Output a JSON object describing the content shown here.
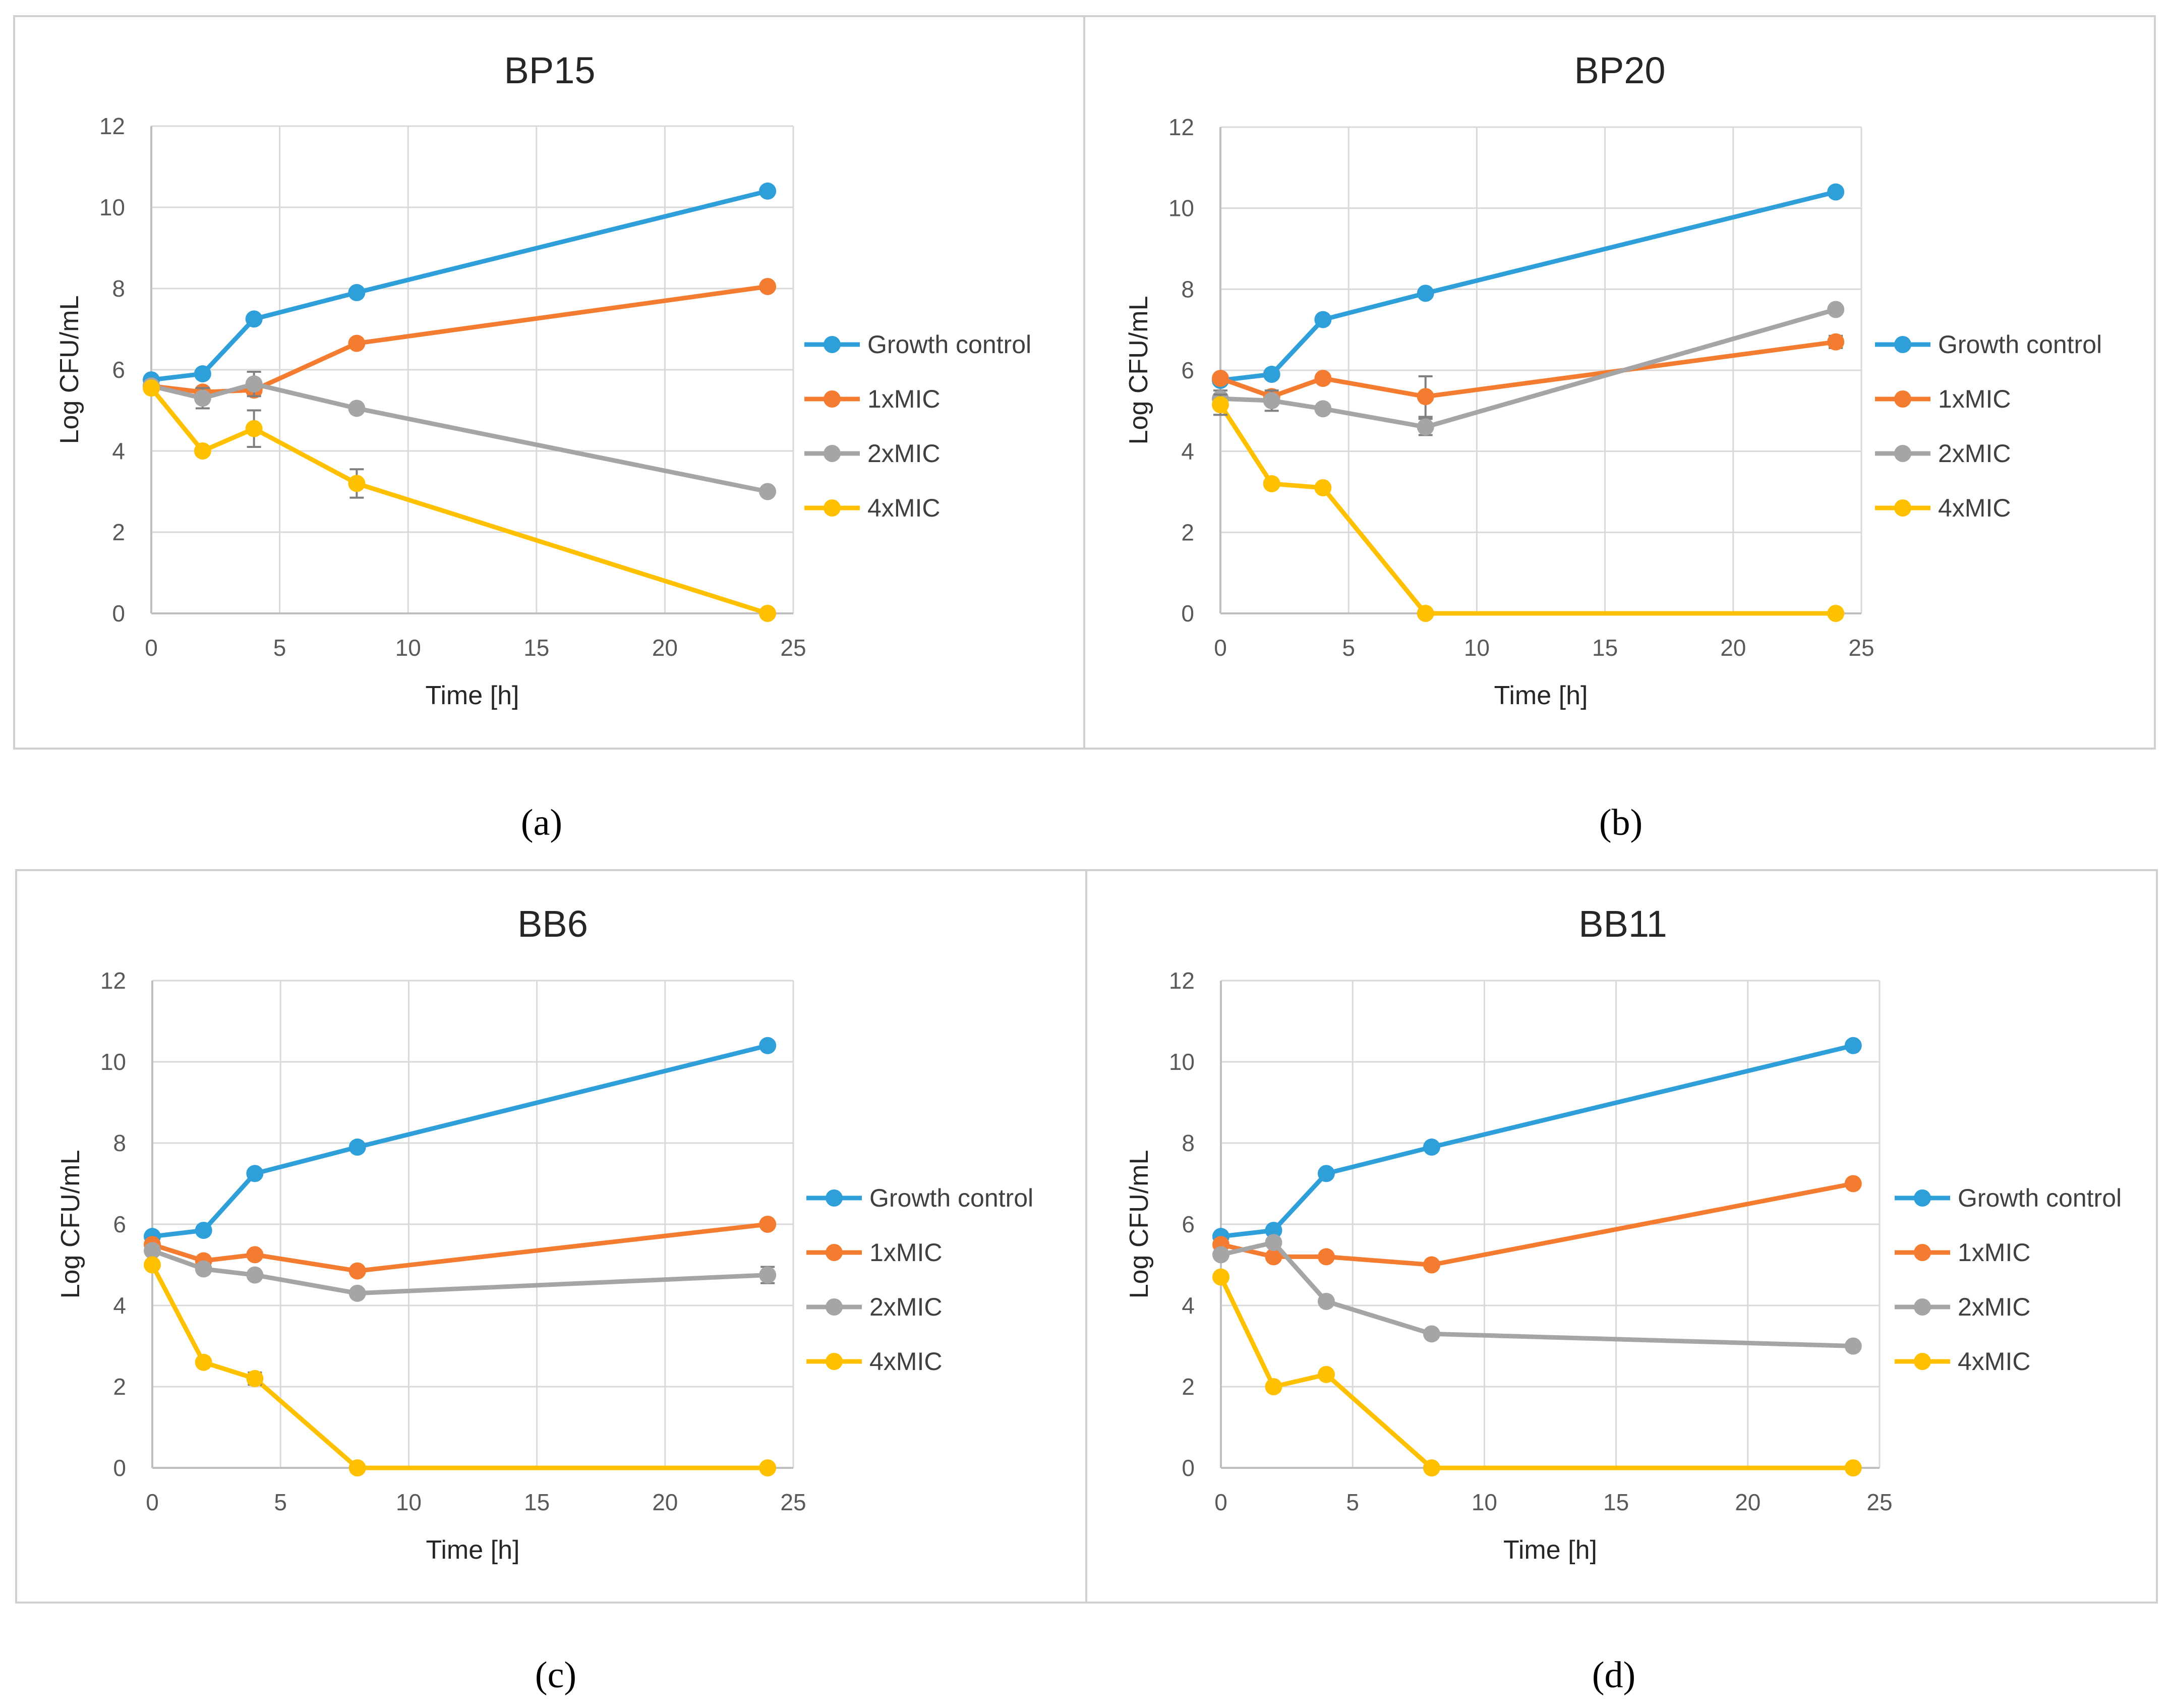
{
  "figure": {
    "panels": [
      {
        "caption": "(a)"
      },
      {
        "caption": "(b)"
      },
      {
        "caption": "(c)"
      },
      {
        "caption": "(d)"
      }
    ]
  },
  "chart_data": [
    {
      "type": "line",
      "title": "BP15",
      "xlabel": "Time [h]",
      "ylabel": "Log CFU/mL",
      "xlim": [
        0,
        25
      ],
      "ylim": [
        0,
        12
      ],
      "xticks": [
        0,
        5,
        10,
        15,
        20,
        25
      ],
      "yticks": [
        0,
        2,
        4,
        6,
        8,
        10,
        12
      ],
      "grid": true,
      "legend": "right",
      "x": [
        0,
        2,
        4,
        8,
        24
      ],
      "series": [
        {
          "name": "Growth control",
          "color": "#2e9fd9",
          "values": [
            5.75,
            5.9,
            7.25,
            7.9,
            10.4
          ],
          "errors": [
            0,
            0,
            0,
            0,
            0
          ]
        },
        {
          "name": "1xMIC",
          "color": "#f47c30",
          "values": [
            5.6,
            5.45,
            5.5,
            6.65,
            8.05
          ],
          "errors": [
            0,
            0,
            0,
            0.1,
            0
          ]
        },
        {
          "name": "2xMIC",
          "color": "#a5a5a5",
          "values": [
            5.6,
            5.3,
            5.65,
            5.05,
            3.0
          ],
          "errors": [
            0,
            0.25,
            0.3,
            0,
            0
          ]
        },
        {
          "name": "4xMIC",
          "color": "#ffc000",
          "values": [
            5.55,
            4.0,
            4.55,
            3.2,
            0.0
          ],
          "errors": [
            0,
            0,
            0.45,
            0.35,
            0
          ]
        }
      ]
    },
    {
      "type": "line",
      "title": "BP20",
      "xlabel": "Time [h]",
      "ylabel": "Log CFU/mL",
      "xlim": [
        0,
        25
      ],
      "ylim": [
        0,
        12
      ],
      "xticks": [
        0,
        5,
        10,
        15,
        20,
        25
      ],
      "yticks": [
        0,
        2,
        4,
        6,
        8,
        10,
        12
      ],
      "grid": true,
      "legend": "right",
      "x": [
        0,
        2,
        4,
        8,
        24
      ],
      "series": [
        {
          "name": "Growth control",
          "color": "#2e9fd9",
          "values": [
            5.75,
            5.9,
            7.25,
            7.9,
            10.4
          ],
          "errors": [
            0,
            0,
            0,
            0,
            0
          ]
        },
        {
          "name": "1xMIC",
          "color": "#f47c30",
          "values": [
            5.8,
            5.35,
            5.8,
            5.35,
            6.7
          ],
          "errors": [
            0,
            0,
            0,
            0.5,
            0.15
          ]
        },
        {
          "name": "2xMIC",
          "color": "#a5a5a5",
          "values": [
            5.3,
            5.25,
            5.05,
            4.6,
            7.5
          ],
          "errors": [
            0.2,
            0.25,
            0,
            0.2,
            0
          ]
        },
        {
          "name": "4xMIC",
          "color": "#ffc000",
          "values": [
            5.15,
            3.2,
            3.1,
            0.0,
            0.0
          ],
          "errors": [
            0.25,
            0,
            0,
            0,
            0
          ]
        }
      ]
    },
    {
      "type": "line",
      "title": "BB6",
      "xlabel": "Time [h]",
      "ylabel": "Log CFU/mL",
      "xlim": [
        0,
        25
      ],
      "ylim": [
        0,
        12
      ],
      "xticks": [
        0,
        5,
        10,
        15,
        20,
        25
      ],
      "yticks": [
        0,
        2,
        4,
        6,
        8,
        10,
        12
      ],
      "grid": true,
      "legend": "right",
      "x": [
        0,
        2,
        4,
        8,
        24
      ],
      "series": [
        {
          "name": "Growth control",
          "color": "#2e9fd9",
          "values": [
            5.7,
            5.85,
            7.25,
            7.9,
            10.4
          ],
          "errors": [
            0,
            0,
            0,
            0,
            0
          ]
        },
        {
          "name": "1xMIC",
          "color": "#f47c30",
          "values": [
            5.5,
            5.1,
            5.25,
            4.85,
            6.0
          ],
          "errors": [
            0,
            0,
            0,
            0,
            0
          ]
        },
        {
          "name": "2xMIC",
          "color": "#a5a5a5",
          "values": [
            5.35,
            4.9,
            4.75,
            4.3,
            4.75
          ],
          "errors": [
            0,
            0.1,
            0,
            0,
            0.2
          ]
        },
        {
          "name": "4xMIC",
          "color": "#ffc000",
          "values": [
            5.0,
            2.6,
            2.2,
            0.0,
            0.0
          ],
          "errors": [
            0,
            0,
            0.15,
            0,
            0
          ]
        }
      ]
    },
    {
      "type": "line",
      "title": "BB11",
      "xlabel": "Time [h]",
      "ylabel": "Log CFU/mL",
      "xlim": [
        0,
        25
      ],
      "ylim": [
        0,
        12
      ],
      "xticks": [
        0,
        5,
        10,
        15,
        20,
        25
      ],
      "yticks": [
        0,
        2,
        4,
        6,
        8,
        10,
        12
      ],
      "grid": true,
      "legend": "right",
      "x": [
        0,
        2,
        4,
        8,
        24
      ],
      "series": [
        {
          "name": "Growth control",
          "color": "#2e9fd9",
          "values": [
            5.7,
            5.85,
            7.25,
            7.9,
            10.4
          ],
          "errors": [
            0,
            0,
            0,
            0,
            0
          ]
        },
        {
          "name": "1xMIC",
          "color": "#f47c30",
          "values": [
            5.5,
            5.2,
            5.2,
            5.0,
            7.0
          ],
          "errors": [
            0,
            0,
            0,
            0,
            0
          ]
        },
        {
          "name": "2xMIC",
          "color": "#a5a5a5",
          "values": [
            5.25,
            5.55,
            4.1,
            3.3,
            3.0
          ],
          "errors": [
            0,
            0,
            0,
            0,
            0
          ]
        },
        {
          "name": "4xMIC",
          "color": "#ffc000",
          "values": [
            4.7,
            2.0,
            2.3,
            0.0,
            0.0
          ],
          "errors": [
            0,
            0,
            0,
            0,
            0
          ]
        }
      ]
    }
  ]
}
